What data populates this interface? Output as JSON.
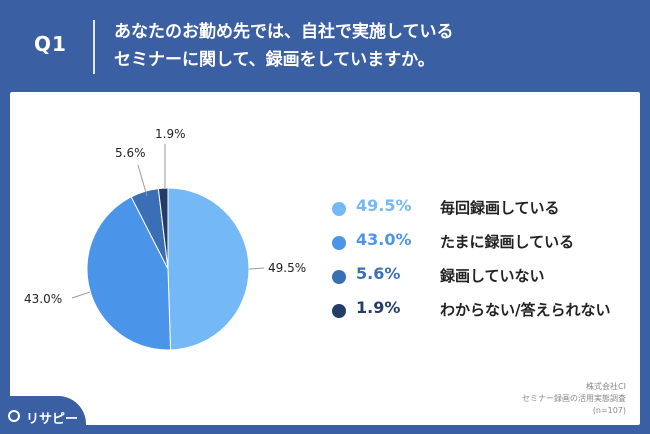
{
  "header": {
    "question_number": "Q1",
    "question_line1": "あなたのお勤め先では、自社で実施している",
    "question_line2": "セミナーに関して、録画をしていますか。"
  },
  "source": {
    "line1": "株式会社CI",
    "line2": "セミナー録画の活用実態調査",
    "line3": "(n=107)"
  },
  "logo": {
    "text": "リサピー"
  },
  "colors": {
    "accent": "#3b5fa3"
  },
  "chart_data": {
    "type": "pie",
    "slices": [
      {
        "label": "毎回録画している",
        "value": 49.5,
        "display": "49.5%",
        "color": "#74b8f5"
      },
      {
        "label": "たまに録画している",
        "value": 43.0,
        "display": "43.0%",
        "color": "#4a95ea"
      },
      {
        "label": "録画していない",
        "value": 5.6,
        "display": "5.6%",
        "color": "#3a6eb5"
      },
      {
        "label": "わからない/答えられない",
        "value": 1.9,
        "display": "1.9%",
        "color": "#233d68"
      }
    ],
    "legend_position": "right"
  }
}
